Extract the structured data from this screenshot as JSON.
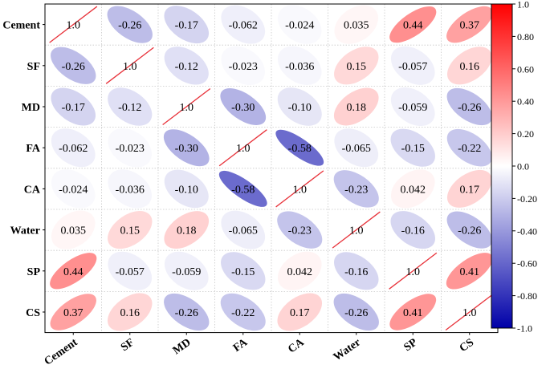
{
  "chart_data": {
    "type": "heatmap",
    "variant": "ellipse-correlation-matrix",
    "labels": [
      "Cement",
      "SF",
      "MD",
      "FA",
      "CA",
      "Water",
      "SP",
      "CS"
    ],
    "matrix": [
      [
        1.0,
        -0.26,
        -0.17,
        -0.062,
        -0.024,
        0.035,
        0.44,
        0.37
      ],
      [
        -0.26,
        1.0,
        -0.12,
        -0.023,
        -0.036,
        0.15,
        -0.057,
        0.16
      ],
      [
        -0.17,
        -0.12,
        1.0,
        -0.3,
        -0.1,
        0.18,
        -0.059,
        -0.26
      ],
      [
        -0.062,
        -0.023,
        -0.3,
        1.0,
        -0.58,
        -0.065,
        -0.15,
        -0.22
      ],
      [
        -0.024,
        -0.036,
        -0.1,
        -0.58,
        1.0,
        -0.23,
        0.042,
        0.17
      ],
      [
        0.035,
        0.15,
        0.18,
        -0.065,
        -0.23,
        1.0,
        -0.16,
        -0.26
      ],
      [
        0.44,
        -0.057,
        -0.059,
        -0.15,
        0.042,
        -0.16,
        1.0,
        0.41
      ],
      [
        0.37,
        0.16,
        -0.26,
        -0.22,
        0.17,
        -0.26,
        0.41,
        1.0
      ]
    ],
    "cell_text": [
      [
        "1.0",
        "-0.26",
        "-0.17",
        "-0.062",
        "-0.024",
        "0.035",
        "0.44",
        "0.37"
      ],
      [
        "-0.26",
        "1.0",
        "-0.12",
        "-0.023",
        "-0.036",
        "0.15",
        "-0.057",
        "0.16"
      ],
      [
        "-0.17",
        "-0.12",
        "1.0",
        "-0.30",
        "-0.10",
        "0.18",
        "-0.059",
        "-0.26"
      ],
      [
        "-0.062",
        "-0.023",
        "-0.30",
        "1.0",
        "-0.58",
        "-0.065",
        "-0.15",
        "-0.22"
      ],
      [
        "-0.024",
        "-0.036",
        "-0.10",
        "-0.58",
        "1.0",
        "-0.23",
        "0.042",
        "0.17"
      ],
      [
        "0.035",
        "0.15",
        "0.18",
        "-0.065",
        "-0.23",
        "1.0",
        "-0.16",
        "-0.26"
      ],
      [
        "0.44",
        "-0.057",
        "-0.059",
        "-0.15",
        "0.042",
        "-0.16",
        "1.0",
        "0.41"
      ],
      [
        "0.37",
        "0.16",
        "-0.26",
        "-0.22",
        "0.17",
        "-0.26",
        "0.41",
        "1.0"
      ]
    ],
    "colorbar": {
      "range": [
        -1.0,
        1.0
      ],
      "ticks": [
        "1.0",
        "0.80",
        "0.60",
        "0.40",
        "0.20",
        "0.0",
        "-0.20",
        "-0.40",
        "-0.60",
        "-0.80",
        "-1.0"
      ],
      "tick_values": [
        1.0,
        0.8,
        0.6,
        0.4,
        0.2,
        0.0,
        -0.2,
        -0.4,
        -0.6,
        -0.8,
        -1.0
      ],
      "colors": {
        "negative": "#0000a8",
        "zero": "#ffffff",
        "positive": "#ff0000"
      }
    },
    "diagonal_line_color": "#e8323a",
    "grid": true
  }
}
